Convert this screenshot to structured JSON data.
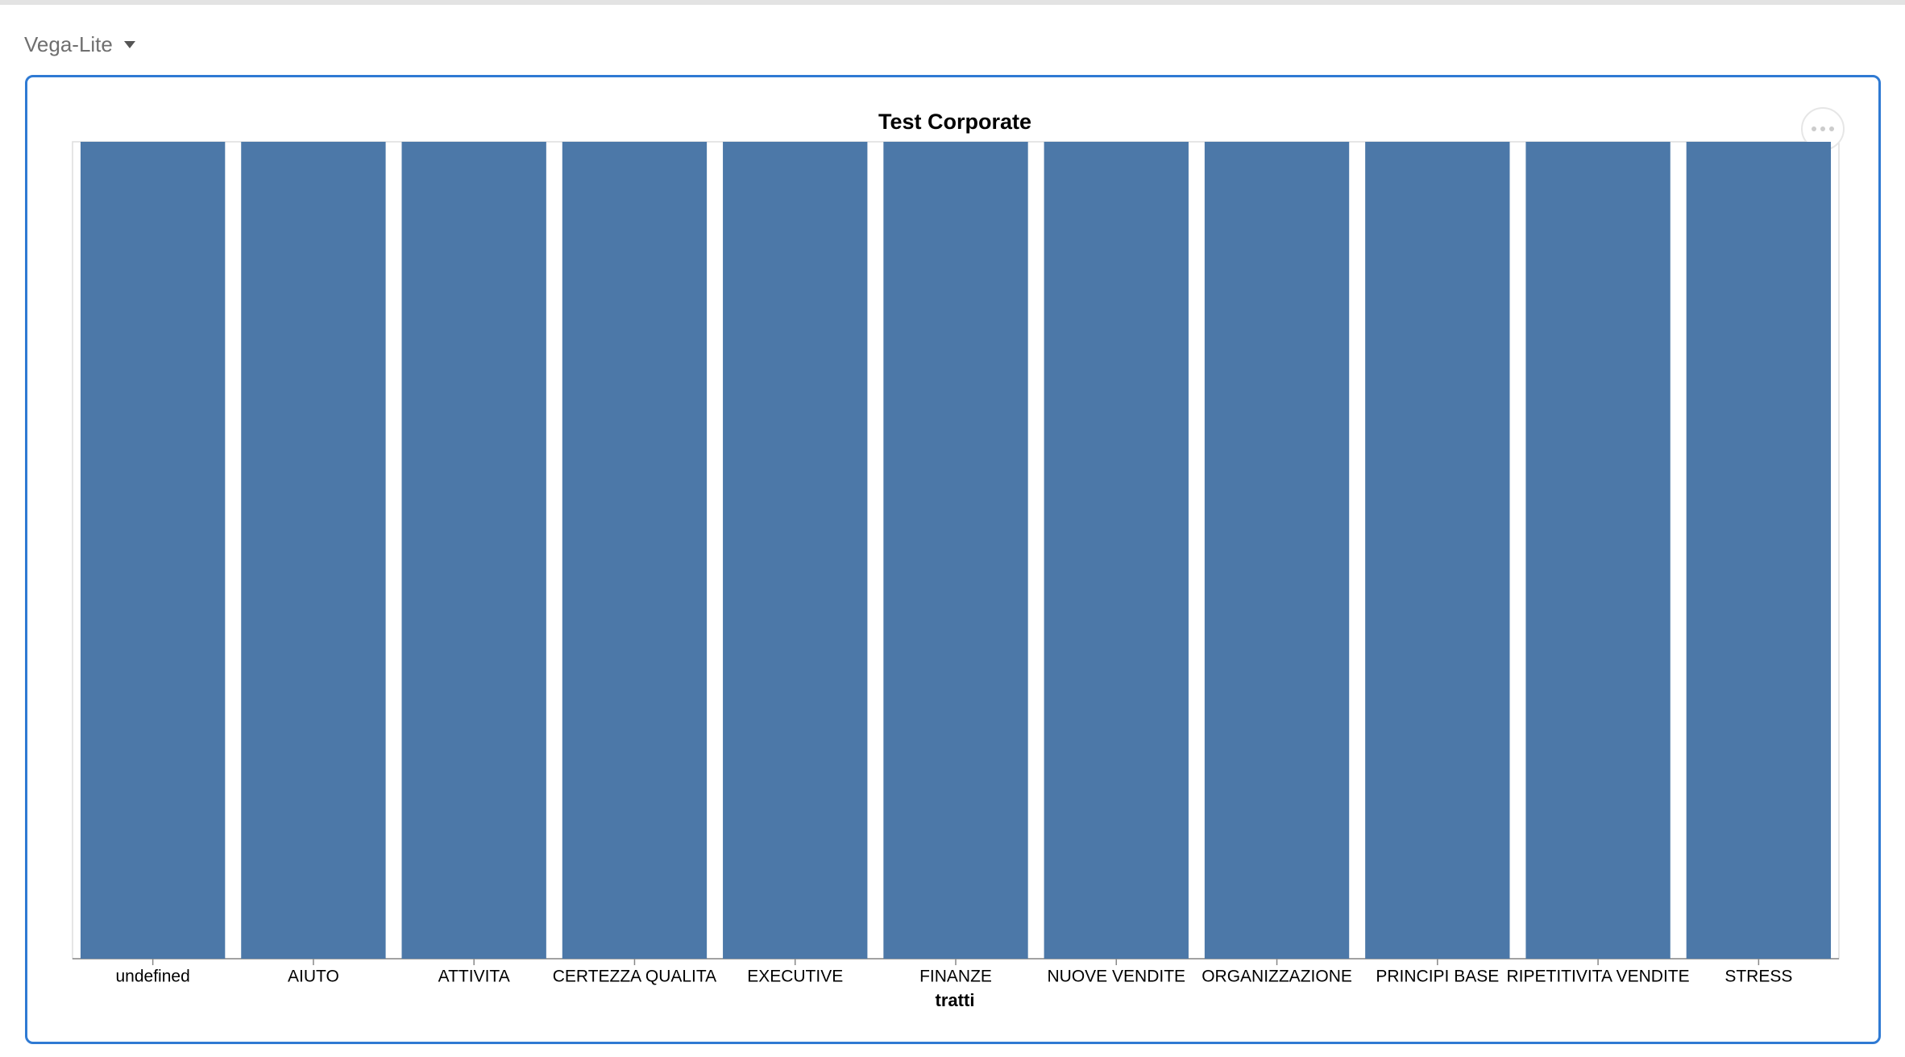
{
  "menu": {
    "label": "Vega-Lite"
  },
  "chart_data": {
    "type": "bar",
    "title": "Test Corporate",
    "x_label": "tratti",
    "categories": [
      "undefined",
      "AIUTO",
      "ATTIVITA",
      "CERTEZZA QUALITA",
      "EXECUTIVE",
      "FINANZE",
      "NUOVE VENDITE",
      "ORGANIZZAZIONE",
      "PRINCIPI BASE",
      "RIPETITIVITA VENDITE",
      "STRESS"
    ],
    "values": [
      1,
      1,
      1,
      1,
      1,
      1,
      1,
      1,
      1,
      1,
      1
    ],
    "color": "#4c78a8",
    "ylim": [
      0,
      1
    ],
    "grid": false
  }
}
